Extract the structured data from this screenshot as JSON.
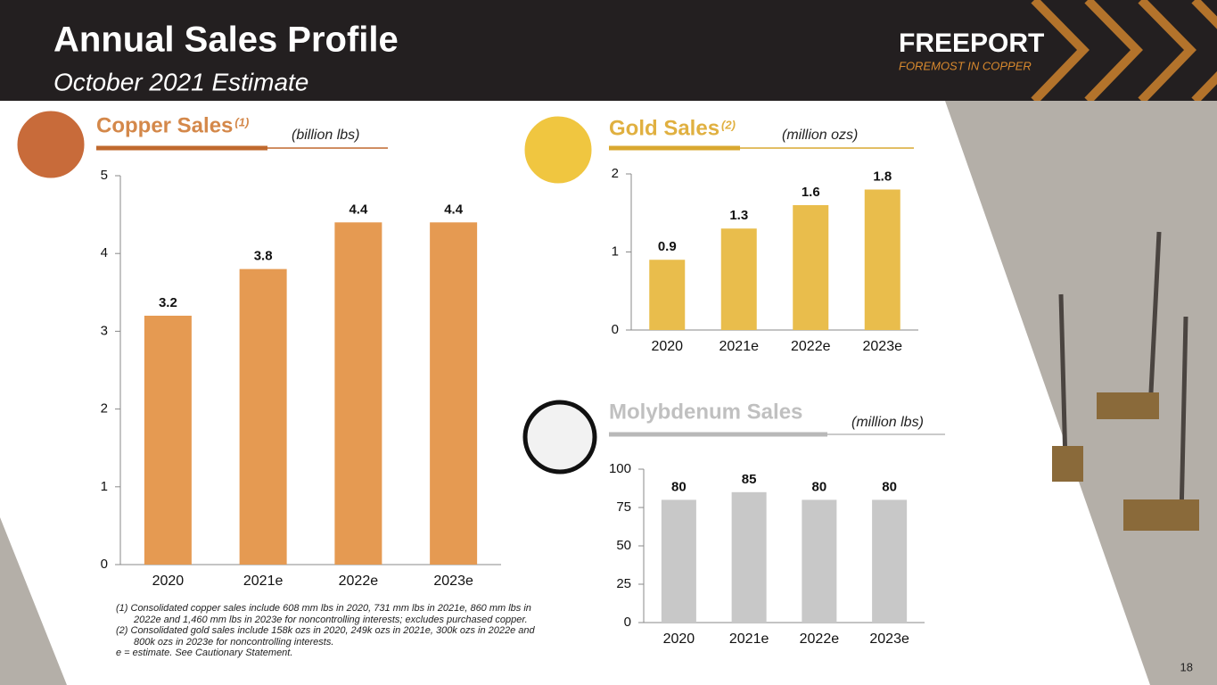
{
  "header": {
    "title": "Annual Sales Profile",
    "subtitle": "October 2021 Estimate",
    "logo": "FREEPORT",
    "tagline": "FOREMOST IN COPPER"
  },
  "chart_data": [
    {
      "type": "bar",
      "title": "Copper Sales",
      "title_note": "(1)",
      "unit": "(billion lbs)",
      "categories": [
        "2020",
        "2021e",
        "2022e",
        "2023e"
      ],
      "values": [
        3.2,
        3.8,
        4.4,
        4.4
      ],
      "color": "#e59a52",
      "ylim": [
        0,
        5
      ],
      "yticks": [
        0,
        1,
        2,
        3,
        4,
        5
      ]
    },
    {
      "type": "bar",
      "title": "Gold Sales",
      "title_note": "(2)",
      "unit": "(million ozs)",
      "categories": [
        "2020",
        "2021e",
        "2022e",
        "2023e"
      ],
      "values": [
        0.9,
        1.3,
        1.6,
        1.8
      ],
      "color": "#e9bd4c",
      "ylim": [
        0,
        2
      ],
      "yticks": [
        0,
        1,
        2
      ]
    },
    {
      "type": "bar",
      "title": "Molybdenum  Sales",
      "unit": "(million lbs)",
      "categories": [
        "2020",
        "2021e",
        "2022e",
        "2023e"
      ],
      "values": [
        80,
        85,
        80,
        80
      ],
      "color": "#c8c8c8",
      "ylim": [
        0,
        100
      ],
      "yticks": [
        0,
        25,
        50,
        75,
        100
      ]
    }
  ],
  "footnotes": [
    "(1) Consolidated copper sales include 608 mm lbs in 2020, 731 mm lbs in 2021e, 860 mm lbs in 2022e and 1,460 mm lbs in 2023e for noncontrolling interests; excludes purchased copper.",
    "(2) Consolidated gold sales include 158k ozs in 2020, 249k ozs in 2021e, 300k ozs in 2022e and 800k ozs in 2023e for noncontrolling interests.",
    "e = estimate. See Cautionary Statement."
  ],
  "page_number": "18"
}
